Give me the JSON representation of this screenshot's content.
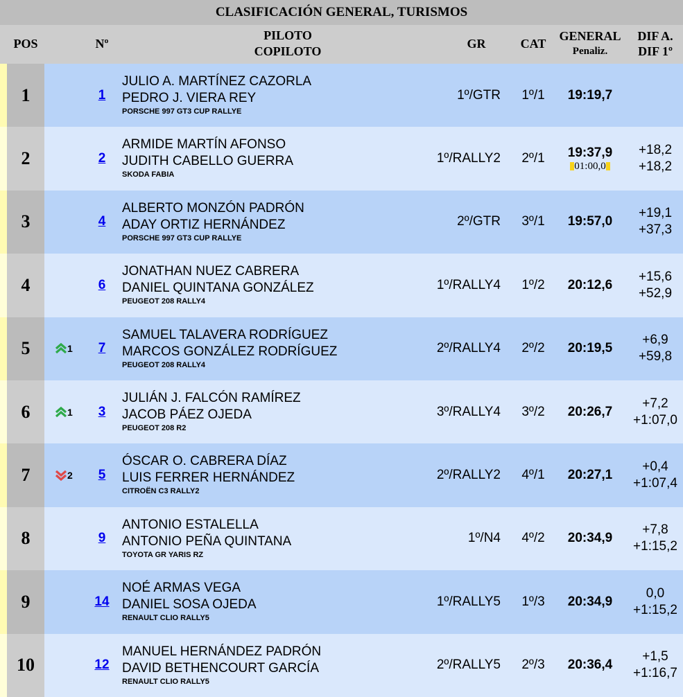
{
  "title": "CLASIFICACIÓN GENERAL, TURISMOS",
  "headers": {
    "pos": "POS",
    "num": "Nº",
    "piloto": "PILOTO",
    "copiloto": "COPILOTO",
    "gr": "GR",
    "cat": "CAT",
    "general": "GENERAL",
    "penaliz": "Penaliz.",
    "dif_a": "DIF A.",
    "dif_1": "DIF 1º"
  },
  "colors": {
    "up": "#2eaa4a",
    "down": "#e04848",
    "penalty": "#f7d21a"
  },
  "rows": [
    {
      "pos": "1",
      "num": "1",
      "piloto": "JULIO A. MARTÍNEZ CAZORLA",
      "copiloto": "PEDRO J. VIERA REY",
      "car": "PORSCHE 997 GT3 CUP RALLYE",
      "gr": "1º/GTR",
      "cat": "1º/1",
      "time": "19:19,7",
      "penalty": "",
      "dif_a": "",
      "dif_1": "",
      "change": "",
      "change_dir": ""
    },
    {
      "pos": "2",
      "num": "2",
      "piloto": "ARMIDE MARTÍN AFONSO",
      "copiloto": "JUDITH CABELLO GUERRA",
      "car": "SKODA FABIA",
      "gr": "1º/RALLY2",
      "cat": "2º/1",
      "time": "19:37,9",
      "penalty": "01:00,0",
      "dif_a": "+18,2",
      "dif_1": "+18,2",
      "change": "",
      "change_dir": ""
    },
    {
      "pos": "3",
      "num": "4",
      "piloto": "ALBERTO MONZÓN PADRÓN",
      "copiloto": "ADAY ORTIZ HERNÁNDEZ",
      "car": "PORSCHE 997 GT3 CUP RALLYE",
      "gr": "2º/GTR",
      "cat": "3º/1",
      "time": "19:57,0",
      "penalty": "",
      "dif_a": "+19,1",
      "dif_1": "+37,3",
      "change": "",
      "change_dir": ""
    },
    {
      "pos": "4",
      "num": "6",
      "piloto": "JONATHAN NUEZ CABRERA",
      "copiloto": "DANIEL QUINTANA GONZÁLEZ",
      "car": "PEUGEOT 208 RALLY4",
      "gr": "1º/RALLY4",
      "cat": "1º/2",
      "time": "20:12,6",
      "penalty": "",
      "dif_a": "+15,6",
      "dif_1": "+52,9",
      "change": "",
      "change_dir": ""
    },
    {
      "pos": "5",
      "num": "7",
      "piloto": "SAMUEL TALAVERA RODRÍGUEZ",
      "copiloto": "MARCOS GONZÁLEZ RODRÍGUEZ",
      "car": "PEUGEOT 208 RALLY4",
      "gr": "2º/RALLY4",
      "cat": "2º/2",
      "time": "20:19,5",
      "penalty": "",
      "dif_a": "+6,9",
      "dif_1": "+59,8",
      "change": "1",
      "change_dir": "up"
    },
    {
      "pos": "6",
      "num": "3",
      "piloto": "JULIÁN J. FALCÓN RAMÍREZ",
      "copiloto": "JACOB PÁEZ OJEDA",
      "car": "PEUGEOT 208 R2",
      "gr": "3º/RALLY4",
      "cat": "3º/2",
      "time": "20:26,7",
      "penalty": "",
      "dif_a": "+7,2",
      "dif_1": "+1:07,0",
      "change": "1",
      "change_dir": "up"
    },
    {
      "pos": "7",
      "num": "5",
      "piloto": "ÓSCAR O. CABRERA DÍAZ",
      "copiloto": "LUIS FERRER HERNÁNDEZ",
      "car": "CITROËN C3 RALLY2",
      "gr": "2º/RALLY2",
      "cat": "4º/1",
      "time": "20:27,1",
      "penalty": "",
      "dif_a": "+0,4",
      "dif_1": "+1:07,4",
      "change": "2",
      "change_dir": "down"
    },
    {
      "pos": "8",
      "num": "9",
      "piloto": "ANTONIO ESTALELLA",
      "copiloto": "ANTONIO PEÑA QUINTANA",
      "car": "TOYOTA GR YARIS RZ",
      "gr": "1º/N4",
      "cat": "4º/2",
      "time": "20:34,9",
      "penalty": "",
      "dif_a": "+7,8",
      "dif_1": "+1:15,2",
      "change": "",
      "change_dir": ""
    },
    {
      "pos": "9",
      "num": "14",
      "piloto": "NOÉ ARMAS VEGA",
      "copiloto": "DANIEL SOSA OJEDA",
      "car": "RENAULT CLIO RALLY5",
      "gr": "1º/RALLY5",
      "cat": "1º/3",
      "time": "20:34,9",
      "penalty": "",
      "dif_a": "0,0",
      "dif_1": "+1:15,2",
      "change": "",
      "change_dir": ""
    },
    {
      "pos": "10",
      "num": "12",
      "piloto": "MANUEL HERNÁNDEZ PADRÓN",
      "copiloto": "DAVID BETHENCOURT GARCÍA",
      "car": "RENAULT CLIO RALLY5",
      "gr": "2º/RALLY5",
      "cat": "2º/3",
      "time": "20:36,4",
      "penalty": "",
      "dif_a": "+1,5",
      "dif_1": "+1:16,7",
      "change": "",
      "change_dir": ""
    }
  ]
}
